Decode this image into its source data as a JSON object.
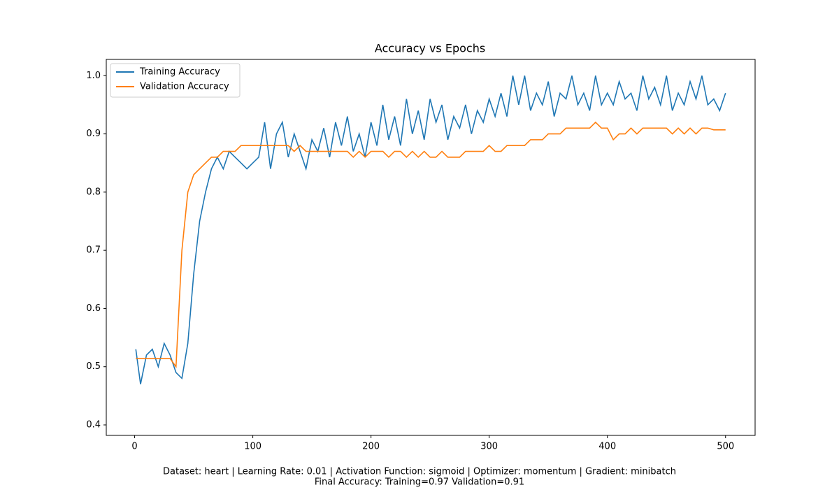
{
  "chart_data": {
    "type": "line",
    "title": "Accuracy vs Epochs",
    "x": [
      1,
      5,
      10,
      15,
      20,
      25,
      30,
      35,
      40,
      45,
      50,
      55,
      60,
      65,
      70,
      75,
      80,
      85,
      90,
      95,
      100,
      105,
      110,
      115,
      120,
      125,
      130,
      135,
      140,
      145,
      150,
      155,
      160,
      165,
      170,
      175,
      180,
      185,
      190,
      195,
      200,
      205,
      210,
      215,
      220,
      225,
      230,
      235,
      240,
      245,
      250,
      255,
      260,
      265,
      270,
      275,
      280,
      285,
      290,
      295,
      300,
      305,
      310,
      315,
      320,
      325,
      330,
      335,
      340,
      345,
      350,
      355,
      360,
      365,
      370,
      375,
      380,
      385,
      390,
      395,
      400,
      405,
      410,
      415,
      420,
      425,
      430,
      435,
      440,
      445,
      450,
      455,
      460,
      465,
      470,
      475,
      480,
      485,
      490,
      495,
      500
    ],
    "series": [
      {
        "name": "Training Accuracy",
        "color": "#1f77b4",
        "values": [
          0.53,
          0.47,
          0.52,
          0.53,
          0.5,
          0.54,
          0.52,
          0.49,
          0.48,
          0.54,
          0.66,
          0.75,
          0.8,
          0.84,
          0.86,
          0.84,
          0.87,
          0.86,
          0.85,
          0.84,
          0.85,
          0.86,
          0.92,
          0.84,
          0.9,
          0.92,
          0.86,
          0.9,
          0.87,
          0.84,
          0.89,
          0.87,
          0.91,
          0.86,
          0.92,
          0.88,
          0.93,
          0.87,
          0.9,
          0.86,
          0.92,
          0.88,
          0.95,
          0.89,
          0.93,
          0.88,
          0.96,
          0.9,
          0.94,
          0.89,
          0.96,
          0.92,
          0.95,
          0.89,
          0.93,
          0.91,
          0.95,
          0.9,
          0.94,
          0.92,
          0.96,
          0.93,
          0.97,
          0.93,
          1.0,
          0.95,
          1.0,
          0.94,
          0.97,
          0.95,
          0.99,
          0.93,
          0.97,
          0.96,
          1.0,
          0.95,
          0.97,
          0.94,
          1.0,
          0.95,
          0.97,
          0.95,
          0.99,
          0.96,
          0.97,
          0.94,
          1.0,
          0.96,
          0.98,
          0.95,
          1.0,
          0.94,
          0.97,
          0.95,
          0.99,
          0.96,
          1.0,
          0.95,
          0.96,
          0.94,
          0.97
        ]
      },
      {
        "name": "Validation Accuracy",
        "color": "#ff7f0e",
        "values": [
          0.514,
          0.514,
          0.514,
          0.514,
          0.514,
          0.514,
          0.514,
          0.5,
          0.7,
          0.8,
          0.83,
          0.84,
          0.85,
          0.86,
          0.86,
          0.87,
          0.87,
          0.87,
          0.88,
          0.88,
          0.88,
          0.88,
          0.88,
          0.88,
          0.88,
          0.88,
          0.88,
          0.87,
          0.88,
          0.87,
          0.87,
          0.87,
          0.87,
          0.87,
          0.87,
          0.87,
          0.87,
          0.86,
          0.87,
          0.86,
          0.87,
          0.87,
          0.87,
          0.86,
          0.87,
          0.87,
          0.86,
          0.87,
          0.86,
          0.87,
          0.86,
          0.86,
          0.87,
          0.86,
          0.86,
          0.86,
          0.87,
          0.87,
          0.87,
          0.87,
          0.88,
          0.87,
          0.87,
          0.88,
          0.88,
          0.88,
          0.88,
          0.89,
          0.89,
          0.89,
          0.9,
          0.9,
          0.9,
          0.91,
          0.91,
          0.91,
          0.91,
          0.91,
          0.92,
          0.91,
          0.91,
          0.89,
          0.9,
          0.9,
          0.91,
          0.9,
          0.91,
          0.91,
          0.91,
          0.91,
          0.91,
          0.9,
          0.91,
          0.9,
          0.91,
          0.9,
          0.91,
          0.91,
          0.907,
          0.907,
          0.907
        ]
      }
    ],
    "xlim": [
      -24,
      525
    ],
    "ylim": [
      0.382,
      1.028
    ],
    "xticks": [
      0,
      100,
      200,
      300,
      400,
      500
    ],
    "yticks": [
      0.4,
      0.5,
      0.6,
      0.7,
      0.8,
      0.9,
      {
        "value": 1,
        "label": "1.0"
      }
    ],
    "legend": "upper left",
    "footnote": [
      "Dataset: heart | Learning Rate: 0.01 | Activation Function: sigmoid | Optimizer: momentum | Gradient: minibatch",
      "Final Accuracy: Training=0.97 Validation=0.91"
    ]
  }
}
